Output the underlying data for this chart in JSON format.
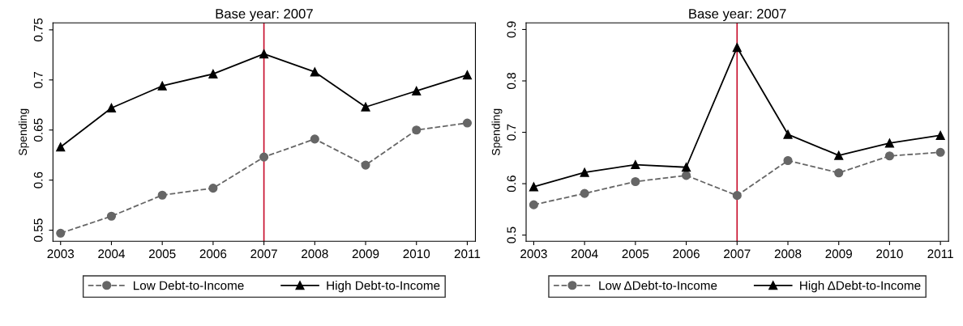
{
  "chart_data": [
    {
      "type": "line",
      "title": "Base year: 2007",
      "ylabel": "Spending",
      "x": [
        2003,
        2004,
        2005,
        2006,
        2007,
        2008,
        2009,
        2010,
        2011
      ],
      "xlim": [
        2002.85,
        2011.16
      ],
      "xticks": [
        2003,
        2004,
        2005,
        2006,
        2007,
        2008,
        2009,
        2010,
        2011
      ],
      "ylim": [
        0.539,
        0.757
      ],
      "yticks": [
        0.55,
        0.6,
        0.65,
        0.7,
        0.75
      ],
      "grid": false,
      "legend": "bottom",
      "ref_lines": [
        {
          "axis": "x",
          "value": 2007,
          "color": "#c8102e"
        }
      ],
      "series": [
        {
          "name": "Low Debt-to-Income",
          "color": "#666666",
          "marker": "circle",
          "line_style": "dashed",
          "values": [
            0.547,
            0.564,
            0.585,
            0.592,
            0.623,
            0.641,
            0.615,
            0.65,
            0.657
          ]
        },
        {
          "name": "High Debt-to-Income",
          "color": "#000000",
          "marker": "triangle",
          "line_style": "solid",
          "values": [
            0.633,
            0.672,
            0.694,
            0.706,
            0.726,
            0.708,
            0.673,
            0.689,
            0.705
          ]
        }
      ]
    },
    {
      "type": "line",
      "title": "Base year: 2007",
      "ylabel": "Spending",
      "x": [
        2003,
        2004,
        2005,
        2006,
        2007,
        2008,
        2009,
        2010,
        2011
      ],
      "xlim": [
        2002.85,
        2011.16
      ],
      "xticks": [
        2003,
        2004,
        2005,
        2006,
        2007,
        2008,
        2009,
        2010,
        2011
      ],
      "ylim": [
        0.488,
        0.913
      ],
      "yticks": [
        0.5,
        0.6,
        0.7,
        0.8,
        0.9
      ],
      "grid": false,
      "legend": "bottom",
      "ref_lines": [
        {
          "axis": "x",
          "value": 2007,
          "color": "#c8102e"
        }
      ],
      "series": [
        {
          "name": "Low ΔDebt-to-Income",
          "color": "#666666",
          "marker": "circle",
          "line_style": "dashed",
          "values": [
            0.559,
            0.581,
            0.604,
            0.616,
            0.577,
            0.645,
            0.621,
            0.654,
            0.661
          ]
        },
        {
          "name": "High ΔDebt-to-Income",
          "color": "#000000",
          "marker": "triangle",
          "line_style": "solid",
          "values": [
            0.594,
            0.622,
            0.637,
            0.632,
            0.865,
            0.696,
            0.655,
            0.679,
            0.694
          ]
        }
      ]
    }
  ]
}
